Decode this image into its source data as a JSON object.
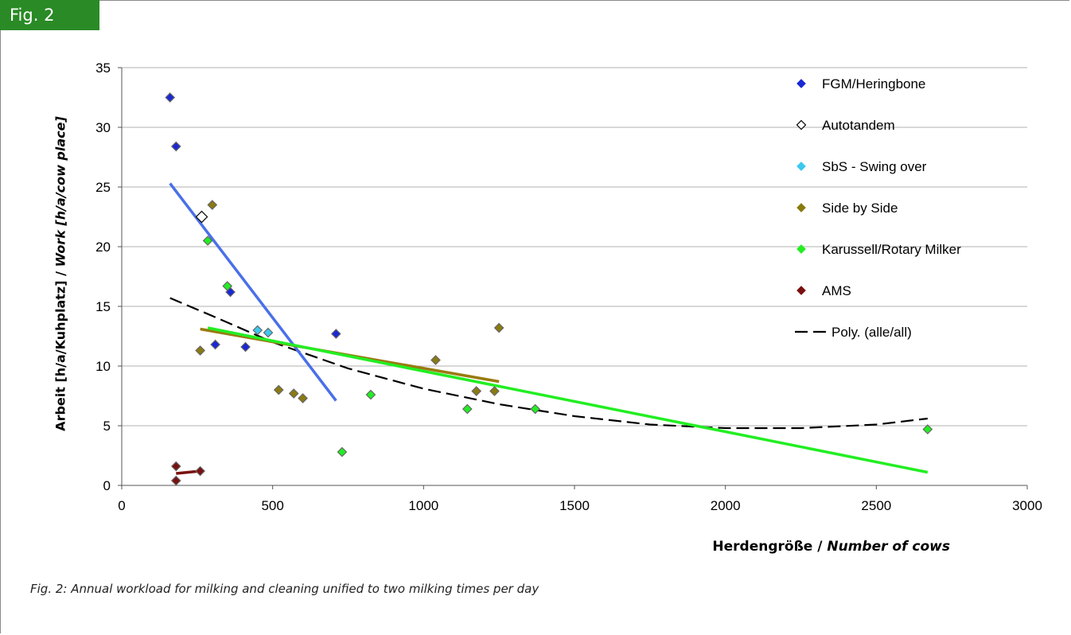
{
  "figure": {
    "tag": "Fig. 2",
    "caption": "Fig. 2: Annual workload for milking and cleaning unified to two milking times per day"
  },
  "chart_data": {
    "type": "scatter",
    "title": "",
    "xlabel_de": "Herdengröße",
    "xlabel_sep": " / ",
    "xlabel_en": "Number of cows",
    "ylabel_de": "Arbeit [h/a/Kuhplatz]",
    "ylabel_sep": " / ",
    "ylabel_en": "Work [h/a/cow place]",
    "xlim": [
      0,
      3000
    ],
    "ylim": [
      0,
      35
    ],
    "x_ticks": [
      0,
      500,
      1000,
      1500,
      2000,
      2500,
      3000
    ],
    "y_ticks": [
      0,
      5,
      10,
      15,
      20,
      25,
      30,
      35
    ],
    "grid": "horizontal",
    "legend_position": "right",
    "series": [
      {
        "name": "FGM/Heringbone",
        "marker": "diamond",
        "color": "#1a28d6",
        "points": [
          [
            160,
            32.5
          ],
          [
            180,
            28.4
          ],
          [
            310,
            11.8
          ],
          [
            360,
            16.2
          ],
          [
            410,
            11.6
          ],
          [
            710,
            12.7
          ]
        ],
        "trend": [
          [
            160,
            25.3
          ],
          [
            710,
            7.1
          ]
        ],
        "trend_color": "#4a70e8"
      },
      {
        "name": "Autotandem",
        "marker": "diamond-open",
        "color": "#000000",
        "points": [
          [
            265,
            22.5
          ]
        ]
      },
      {
        "name": "SbS - Swing over",
        "marker": "diamond",
        "color": "#3cc8f0",
        "points": [
          [
            450,
            13.0
          ],
          [
            485,
            12.8
          ]
        ]
      },
      {
        "name": "Side by Side",
        "marker": "diamond",
        "color": "#8a7a10",
        "points": [
          [
            260,
            11.3
          ],
          [
            300,
            23.5
          ],
          [
            520,
            8.0
          ],
          [
            570,
            7.7
          ],
          [
            600,
            7.3
          ],
          [
            1040,
            10.5
          ],
          [
            1175,
            7.9
          ],
          [
            1235,
            7.9
          ],
          [
            1250,
            13.2
          ]
        ],
        "trend": [
          [
            260,
            13.1
          ],
          [
            1250,
            8.7
          ]
        ],
        "trend_color": "#9a7a10"
      },
      {
        "name": "Karussell/Rotary Milker",
        "marker": "diamond",
        "color": "#22ee22",
        "points": [
          [
            285,
            20.5
          ],
          [
            350,
            16.7
          ],
          [
            730,
            2.8
          ],
          [
            825,
            7.6
          ],
          [
            1145,
            6.4
          ],
          [
            1370,
            6.4
          ],
          [
            2670,
            4.7
          ]
        ],
        "trend": [
          [
            285,
            13.2
          ],
          [
            2670,
            1.1
          ]
        ],
        "trend_color": "#22ee22"
      },
      {
        "name": "AMS",
        "marker": "diamond",
        "color": "#7a1010",
        "points": [
          [
            180,
            1.6
          ],
          [
            180,
            0.4
          ],
          [
            260,
            1.2
          ]
        ],
        "trend": [
          [
            180,
            1.0
          ],
          [
            260,
            1.2
          ]
        ],
        "trend_color": "#7a1010"
      },
      {
        "name": "Poly. (alle/all)",
        "marker": "dashed-line",
        "color": "#000000",
        "curve": [
          [
            160,
            15.7
          ],
          [
            300,
            14.2
          ],
          [
            500,
            12.0
          ],
          [
            750,
            9.8
          ],
          [
            1000,
            8.1
          ],
          [
            1250,
            6.8
          ],
          [
            1500,
            5.8
          ],
          [
            1750,
            5.1
          ],
          [
            2000,
            4.8
          ],
          [
            2250,
            4.8
          ],
          [
            2500,
            5.1
          ],
          [
            2670,
            5.6
          ]
        ]
      }
    ]
  }
}
